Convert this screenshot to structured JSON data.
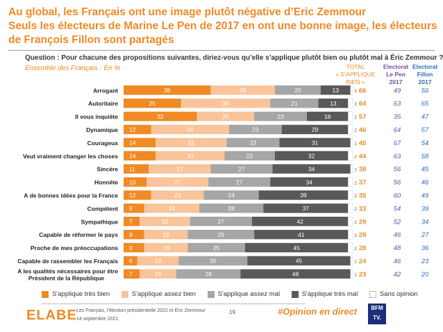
{
  "title": {
    "line1": "Au global, les Français ont une image plutôt négative d’Eric Zemmour",
    "line2": "Seuls les électeurs de Marine Le Pen de 2017 en ont une bonne image, les électeurs",
    "line3": "de François Fillon sont partagés"
  },
  "question": "Question : Pour chacune des propositions suivantes, diriez-vous qu’elle s’applique plutôt bien ou plutôt mal à Éric Zemmour ?",
  "subtitle": "Ensemble des Français - En %",
  "columns": {
    "total": [
      "TOTAL",
      "« S’APPLIQUE",
      "BIEN »"
    ],
    "lepen": [
      "Electorat",
      "Le Pen",
      "2017"
    ],
    "fillon": [
      "Electorat",
      "Fillon",
      "2017"
    ]
  },
  "colors": {
    "tres_bien": "#f08a24",
    "assez_bien": "#f9c49a",
    "assez_mal": "#a6a6a6",
    "tres_mal": "#595959",
    "sans_opinion": "#ffffff",
    "title": "#f08a24",
    "lepen": "#6a4fa0",
    "fillon": "#2a6db5"
  },
  "chart_data": {
    "type": "bar",
    "orientation": "horizontal-stacked-100",
    "categories": [
      "Arrogant",
      "Autoritaire",
      "Il vous inquiète",
      "Dynamique",
      "Courageux",
      "Veut vraiment changer les choses",
      "Sincère",
      "Honnête",
      "A de bonnes idées pour la France",
      "Compétent",
      "Sympathique",
      "Capable de réformer le pays",
      "Proche de mes préoccupations",
      "Capable de rassembler les Français",
      "A les qualités nécessaires pour être Président de la République"
    ],
    "series": [
      {
        "name": "S'applique très bien",
        "values": [
          38,
          25,
          32,
          12,
          14,
          14,
          11,
          10,
          12,
          9,
          7,
          9,
          9,
          6,
          7
        ]
      },
      {
        "name": "S'applique assez bien",
        "values": [
          28,
          39,
          25,
          34,
          31,
          30,
          27,
          27,
          23,
          24,
          22,
          19,
          19,
          18,
          16
        ]
      },
      {
        "name": "S'applique assez mal",
        "values": [
          20,
          21,
          23,
          23,
          23,
          22,
          27,
          27,
          24,
          28,
          27,
          29,
          25,
          30,
          28
        ]
      },
      {
        "name": "S'applique très mal",
        "values": [
          13,
          13,
          18,
          29,
          31,
          32,
          34,
          34,
          39,
          37,
          42,
          41,
          45,
          45,
          48
        ]
      },
      {
        "name": "Sans opinion",
        "values": [
          1,
          2,
          2,
          2,
          1,
          2,
          1,
          2,
          2,
          2,
          2,
          2,
          2,
          1,
          1
        ]
      }
    ],
    "total_sapplique_bien": [
      66,
      64,
      57,
      46,
      45,
      44,
      38,
      37,
      35,
      33,
      29,
      28,
      28,
      24,
      23
    ],
    "electorat_le_pen_2017": [
      49,
      63,
      35,
      64,
      67,
      63,
      56,
      56,
      60,
      54,
      52,
      46,
      48,
      46,
      42
    ],
    "electorat_fillon_2017": [
      56,
      65,
      47,
      57,
      54,
      58,
      45,
      46,
      49,
      39,
      34,
      27,
      36,
      23,
      20
    ],
    "legend_position": "bottom"
  },
  "footer": {
    "logo": "ELABE",
    "source": "Les Français, l’élection présidentielle 2022 et Eric Zemmour",
    "date": "14 septembre 2021",
    "page": "19",
    "hashtag": "#Opinion en direct",
    "bfm_line1": "BFM",
    "bfm_line2": "TV."
  }
}
